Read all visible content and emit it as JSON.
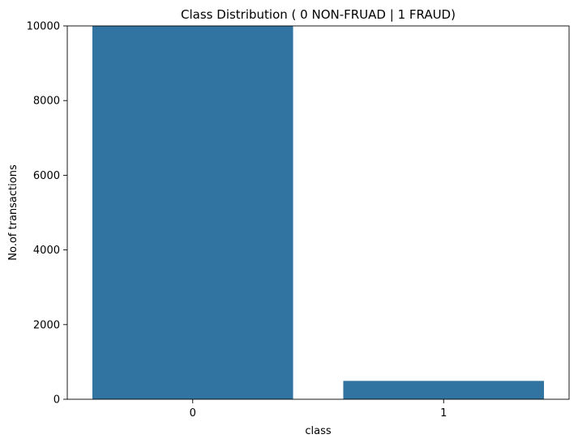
{
  "chart_data": {
    "type": "bar",
    "title": "Class Distribution ( 0 NON-FRUAD | 1 FRAUD)",
    "xlabel": "class",
    "ylabel": "No.of transactions",
    "categories": [
      "0",
      "1"
    ],
    "values": [
      10000,
      492
    ],
    "ylim": [
      0,
      10000
    ],
    "yticks": [
      0,
      2000,
      4000,
      6000,
      8000,
      10000
    ],
    "bar_color": "#3274a1",
    "grid": false,
    "legend": "none"
  }
}
